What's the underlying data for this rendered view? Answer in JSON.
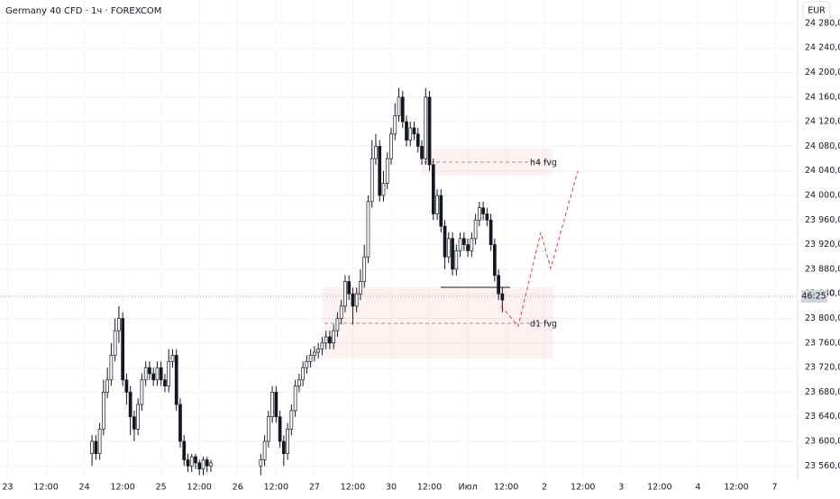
{
  "chart_data": {
    "type": "candlestick",
    "title": "Germany 40 CFD · 1ч · FOREXCOM",
    "currency_button": "EUR",
    "countdown": "46:25",
    "price_tail": "0",
    "annotations": {
      "h4": "h4 fvg",
      "d1": "d1 fvg"
    },
    "up_color": "#ffffff",
    "down_color": "#131722",
    "wick_color": "#131722",
    "xlim": [
      -2,
      206
    ],
    "ylim": [
      23537,
      24318
    ],
    "xticks": [
      {
        "value": 0,
        "label": "23"
      },
      {
        "value": 10,
        "label": "12:00"
      },
      {
        "value": 20,
        "label": "24"
      },
      {
        "value": 30,
        "label": "12:00"
      },
      {
        "value": 40,
        "label": "25"
      },
      {
        "value": 50,
        "label": "12:00"
      },
      {
        "value": 60,
        "label": "26"
      },
      {
        "value": 70,
        "label": "12:00"
      },
      {
        "value": 80,
        "label": "27"
      },
      {
        "value": 90,
        "label": "12:00"
      },
      {
        "value": 100,
        "label": "30"
      },
      {
        "value": 110,
        "label": "12:00"
      },
      {
        "value": 120,
        "label": "Июл"
      },
      {
        "value": 130,
        "label": "12:00"
      },
      {
        "value": 140,
        "label": "2"
      },
      {
        "value": 150,
        "label": "12:00"
      },
      {
        "value": 160,
        "label": "3"
      },
      {
        "value": 170,
        "label": "12:00"
      },
      {
        "value": 180,
        "label": "4"
      },
      {
        "value": 190,
        "label": "12:00"
      },
      {
        "value": 200,
        "label": "7"
      }
    ],
    "yticks": [
      {
        "value": 23560,
        "label": "23 560,0"
      },
      {
        "value": 23600,
        "label": "23 600,0"
      },
      {
        "value": 23640,
        "label": "23 640,0"
      },
      {
        "value": 23680,
        "label": "23 680,0"
      },
      {
        "value": 23720,
        "label": "23 720,0"
      },
      {
        "value": 23760,
        "label": "23 760,0"
      },
      {
        "value": 23800,
        "label": "23 800,0"
      },
      {
        "value": 23840,
        "label": "23 840,0"
      },
      {
        "value": 23880,
        "label": "23 880,0"
      },
      {
        "value": 23920,
        "label": "23 920,0"
      },
      {
        "value": 23960,
        "label": "23 960,0"
      },
      {
        "value": 24000,
        "label": "24 000,0"
      },
      {
        "value": 24040,
        "label": "24 040,0"
      },
      {
        "value": 24080,
        "label": "24 080,0"
      },
      {
        "value": 24120,
        "label": "24 120,0"
      },
      {
        "value": 24160,
        "label": "24 160,0"
      },
      {
        "value": 24200,
        "label": "24 200,0"
      },
      {
        "value": 24240,
        "label": "24 240,0"
      },
      {
        "value": 24280,
        "label": "24 280,0"
      }
    ],
    "x": [
      22,
      23,
      24,
      25,
      26,
      27,
      28,
      29,
      30,
      31,
      32,
      33,
      34,
      35,
      36,
      37,
      38,
      39,
      40,
      41,
      42,
      43,
      44,
      45,
      46,
      47,
      48,
      49,
      50,
      51,
      52,
      53,
      66,
      67,
      68,
      69,
      70,
      71,
      72,
      73,
      74,
      75,
      76,
      77,
      78,
      79,
      80,
      81,
      82,
      83,
      84,
      85,
      86,
      87,
      88,
      89,
      90,
      91,
      92,
      93,
      94,
      95,
      96,
      97,
      98,
      99,
      100,
      101,
      102,
      103,
      104,
      105,
      106,
      107,
      108,
      109,
      110,
      111,
      112,
      113,
      114,
      115,
      116,
      117,
      118,
      119,
      120,
      121,
      122,
      123,
      124,
      125,
      126,
      127,
      128,
      129
    ],
    "open": [
      23580,
      23600,
      23580,
      23620,
      23680,
      23700,
      23740,
      23780,
      23800,
      23700,
      23680,
      23640,
      23620,
      23660,
      23700,
      23720,
      23710,
      23700,
      23720,
      23700,
      23690,
      23730,
      23740,
      23660,
      23600,
      23570,
      23560,
      23575,
      23565,
      23555,
      23570,
      23560,
      23560,
      23570,
      23600,
      23640,
      23680,
      23640,
      23600,
      23580,
      23620,
      23650,
      23690,
      23700,
      23720,
      23730,
      23740,
      23745,
      23750,
      23760,
      23770,
      23760,
      23780,
      23800,
      23820,
      23860,
      23840,
      23820,
      23840,
      23860,
      23900,
      23990,
      24060,
      24080,
      24000,
      24020,
      24060,
      24100,
      24130,
      24160,
      24120,
      24090,
      24110,
      24100,
      24080,
      24060,
      24160,
      24050,
      23970,
      24000,
      23950,
      23900,
      23930,
      23880,
      23910,
      23930,
      23920,
      23910,
      23930,
      23960,
      23980,
      23970,
      23960,
      23920,
      23870,
      23840
    ],
    "high": [
      23610,
      23610,
      23630,
      23700,
      23720,
      23760,
      23800,
      23820,
      23810,
      23710,
      23690,
      23650,
      23670,
      23710,
      23730,
      23730,
      23720,
      23730,
      23730,
      23710,
      23750,
      23750,
      23750,
      23670,
      23610,
      23580,
      23580,
      23580,
      23570,
      23575,
      23575,
      23570,
      23580,
      23610,
      23650,
      23690,
      23690,
      23650,
      23610,
      23630,
      23660,
      23700,
      23710,
      23730,
      23740,
      23750,
      23755,
      23760,
      23770,
      23780,
      23780,
      23790,
      23810,
      23830,
      23870,
      23870,
      23850,
      23850,
      23880,
      23920,
      24000,
      24090,
      24100,
      24090,
      24040,
      24070,
      24110,
      24150,
      24175,
      24170,
      24130,
      24120,
      24120,
      24110,
      24090,
      24175,
      24170,
      24060,
      24010,
      24010,
      23960,
      23940,
      23940,
      23920,
      23940,
      23940,
      23930,
      23940,
      23970,
      23990,
      23990,
      23980,
      23970,
      23930,
      23880,
      23850
    ],
    "low": [
      23560,
      23570,
      23570,
      23610,
      23670,
      23690,
      23730,
      23760,
      23690,
      23660,
      23610,
      23600,
      23610,
      23650,
      23690,
      23700,
      23690,
      23690,
      23690,
      23680,
      23680,
      23720,
      23650,
      23590,
      23560,
      23550,
      23550,
      23555,
      23545,
      23545,
      23550,
      23550,
      23545,
      23560,
      23590,
      23630,
      23630,
      23590,
      23560,
      23570,
      23610,
      23640,
      23680,
      23690,
      23710,
      23720,
      23730,
      23735,
      23740,
      23750,
      23750,
      23750,
      23770,
      23790,
      23810,
      23830,
      23790,
      23810,
      23830,
      23850,
      23890,
      23980,
      24050,
      23990,
      23990,
      24010,
      24050,
      24090,
      24120,
      24110,
      24080,
      24080,
      24090,
      24070,
      24050,
      24050,
      24040,
      23960,
      23960,
      23940,
      23880,
      23890,
      23870,
      23870,
      23900,
      23910,
      23900,
      23900,
      23920,
      23950,
      23960,
      23950,
      23910,
      23860,
      23830,
      23810
    ],
    "close": [
      23600,
      23580,
      23620,
      23680,
      23700,
      23740,
      23780,
      23800,
      23700,
      23680,
      23640,
      23620,
      23660,
      23700,
      23720,
      23710,
      23700,
      23720,
      23700,
      23690,
      23730,
      23740,
      23660,
      23600,
      23570,
      23560,
      23575,
      23565,
      23555,
      23570,
      23560,
      23565,
      23570,
      23600,
      23640,
      23680,
      23640,
      23600,
      23580,
      23620,
      23650,
      23690,
      23700,
      23720,
      23730,
      23740,
      23745,
      23750,
      23760,
      23770,
      23760,
      23780,
      23800,
      23820,
      23860,
      23840,
      23820,
      23840,
      23860,
      23900,
      23990,
      24060,
      24080,
      24000,
      24020,
      24060,
      24100,
      24130,
      24160,
      24120,
      24090,
      24110,
      24100,
      24080,
      24060,
      24160,
      24050,
      23970,
      24000,
      23950,
      23900,
      23930,
      23880,
      23910,
      23930,
      23920,
      23910,
      23930,
      23960,
      23980,
      23970,
      23960,
      23920,
      23870,
      23840,
      23830
    ]
  }
}
